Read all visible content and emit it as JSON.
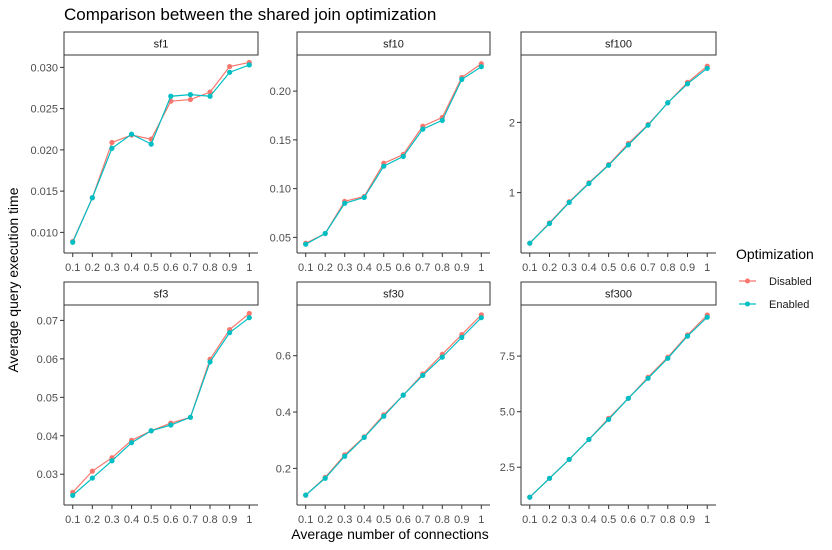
{
  "title": "Comparison between the shared join optimization",
  "xlabel": "Average number of connections",
  "ylabel": "Average query execution time",
  "legend": {
    "title": "Optimization",
    "entries": [
      {
        "label": "Disabled",
        "color": "#F8766D"
      },
      {
        "label": "Enabled",
        "color": "#00BFC4"
      }
    ]
  },
  "chart_data": {
    "type": "line",
    "x": [
      0.1,
      0.2,
      0.3,
      0.4,
      0.5,
      0.6,
      0.7,
      0.8,
      0.9,
      1.0
    ],
    "x_tick_labels": [
      "0.1",
      "0.2",
      "0.3",
      "0.4",
      "0.5",
      "0.6",
      "0.7",
      "0.8",
      "0.9",
      "1"
    ],
    "panels": [
      {
        "name": "sf1",
        "yticks": [
          0.01,
          0.015,
          0.02,
          0.025,
          0.03
        ],
        "ytick_labels": [
          "0.010",
          "0.015",
          "0.020",
          "0.025",
          "0.030"
        ],
        "ylim": [
          0.0075,
          0.0315
        ],
        "series": [
          {
            "name": "Disabled",
            "values": [
              0.0089,
              0.0142,
              0.0209,
              0.0218,
              0.0213,
              0.0259,
              0.0261,
              0.027,
              0.0301,
              0.0306
            ]
          },
          {
            "name": "Enabled",
            "values": [
              0.0088,
              0.0142,
              0.0202,
              0.0219,
              0.0207,
              0.0265,
              0.0267,
              0.0265,
              0.0294,
              0.0303
            ]
          }
        ]
      },
      {
        "name": "sf10",
        "yticks": [
          0.05,
          0.1,
          0.15,
          0.2
        ],
        "ytick_labels": [
          "0.05",
          "0.10",
          "0.15",
          "0.20"
        ],
        "ylim": [
          0.034,
          0.237
        ],
        "series": [
          {
            "name": "Disabled",
            "values": [
              0.044,
              0.054,
              0.087,
              0.092,
              0.126,
              0.135,
              0.164,
              0.173,
              0.214,
              0.228
            ]
          },
          {
            "name": "Enabled",
            "values": [
              0.043,
              0.054,
              0.085,
              0.091,
              0.123,
              0.133,
              0.161,
              0.17,
              0.212,
              0.225
            ]
          }
        ]
      },
      {
        "name": "sf100",
        "yticks": [
          1,
          2
        ],
        "ytick_labels": [
          "1",
          "2"
        ],
        "ylim": [
          0.14,
          2.96
        ],
        "series": [
          {
            "name": "Disabled",
            "values": [
              0.28,
              0.57,
              0.87,
              1.14,
              1.4,
              1.7,
              1.97,
              2.28,
              2.57,
              2.8
            ]
          },
          {
            "name": "Enabled",
            "values": [
              0.28,
              0.56,
              0.86,
              1.13,
              1.39,
              1.68,
              1.96,
              2.28,
              2.55,
              2.77
            ]
          }
        ]
      },
      {
        "name": "sf3",
        "yticks": [
          0.03,
          0.04,
          0.05,
          0.06,
          0.07
        ],
        "ytick_labels": [
          "0.03",
          "0.04",
          "0.05",
          "0.06",
          "0.07"
        ],
        "ylim": [
          0.022,
          0.074
        ],
        "series": [
          {
            "name": "Disabled",
            "values": [
              0.0253,
              0.0308,
              0.0343,
              0.0388,
              0.0413,
              0.0433,
              0.0448,
              0.0599,
              0.0676,
              0.0718
            ]
          },
          {
            "name": "Enabled",
            "values": [
              0.0245,
              0.029,
              0.0335,
              0.0382,
              0.0413,
              0.0428,
              0.0448,
              0.0592,
              0.0668,
              0.0707
            ]
          }
        ]
      },
      {
        "name": "sf30",
        "yticks": [
          0.2,
          0.4,
          0.6
        ],
        "ytick_labels": [
          "0.2",
          "0.4",
          "0.6"
        ],
        "ylim": [
          0.07,
          0.78
        ],
        "series": [
          {
            "name": "Disabled",
            "values": [
              0.105,
              0.168,
              0.248,
              0.312,
              0.39,
              0.46,
              0.535,
              0.605,
              0.675,
              0.745
            ]
          },
          {
            "name": "Enabled",
            "values": [
              0.105,
              0.165,
              0.243,
              0.31,
              0.385,
              0.46,
              0.53,
              0.595,
              0.665,
              0.735
            ]
          }
        ]
      },
      {
        "name": "sf300",
        "yticks": [
          2.5,
          5.0,
          7.5
        ],
        "ytick_labels": [
          "2.5",
          "5.0",
          "7.5"
        ],
        "ylim": [
          0.8,
          9.8
        ],
        "series": [
          {
            "name": "Disabled",
            "values": [
              1.15,
              2.0,
              2.85,
              3.75,
              4.7,
              5.6,
              6.55,
              7.45,
              8.45,
              9.35
            ]
          },
          {
            "name": "Enabled",
            "values": [
              1.15,
              2.0,
              2.85,
              3.75,
              4.65,
              5.6,
              6.5,
              7.4,
              8.4,
              9.25
            ]
          }
        ]
      }
    ]
  }
}
